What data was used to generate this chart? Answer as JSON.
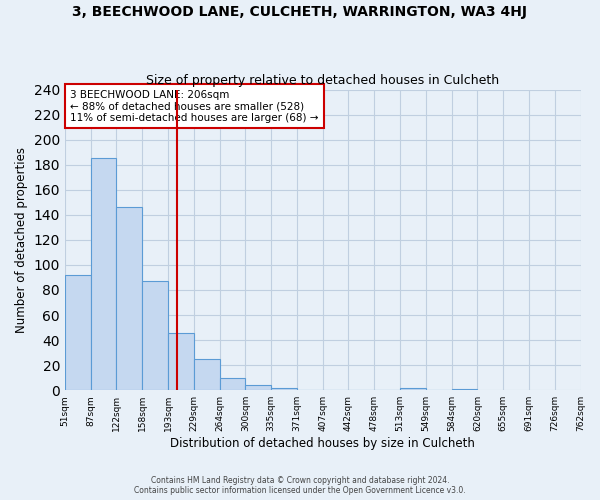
{
  "title": "3, BEECHWOOD LANE, CULCHETH, WARRINGTON, WA3 4HJ",
  "subtitle": "Size of property relative to detached houses in Culcheth",
  "xlabel": "Distribution of detached houses by size in Culcheth",
  "ylabel": "Number of detached properties",
  "bar_values": [
    92,
    185,
    146,
    87,
    46,
    25,
    10,
    4,
    2,
    0,
    0,
    0,
    0,
    2,
    0,
    1
  ],
  "bin_labels": [
    "51sqm",
    "87sqm",
    "122sqm",
    "158sqm",
    "193sqm",
    "229sqm",
    "264sqm",
    "300sqm",
    "335sqm",
    "371sqm",
    "407sqm",
    "442sqm",
    "478sqm",
    "513sqm",
    "549sqm",
    "584sqm",
    "620sqm",
    "655sqm",
    "691sqm",
    "726sqm",
    "762sqm"
  ],
  "bar_color": "#c5d8f0",
  "bar_edge_color": "#5b9bd5",
  "grid_color": "#c0cfe0",
  "background_color": "#e8f0f8",
  "vline_color": "#cc0000",
  "annotation_text": "3 BEECHWOOD LANE: 206sqm\n← 88% of detached houses are smaller (528)\n11% of semi-detached houses are larger (68) →",
  "annotation_box_color": "#ffffff",
  "annotation_box_edge": "#cc0000",
  "ylim": [
    0,
    240
  ],
  "yticks": [
    0,
    20,
    40,
    60,
    80,
    100,
    120,
    140,
    160,
    180,
    200,
    220,
    240
  ],
  "footer_line1": "Contains HM Land Registry data © Crown copyright and database right 2024.",
  "footer_line2": "Contains public sector information licensed under the Open Government Licence v3.0.",
  "title_fontsize": 10,
  "subtitle_fontsize": 9,
  "xlabel_fontsize": 8.5,
  "ylabel_fontsize": 8.5,
  "annotation_fontsize": 7.5
}
